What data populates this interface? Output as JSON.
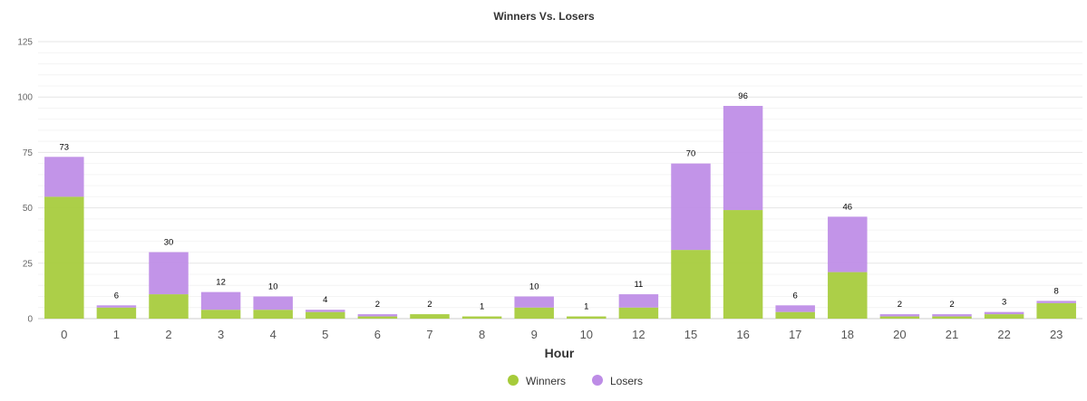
{
  "chart_data": {
    "type": "bar",
    "stacked": true,
    "title": "Winners Vs. Losers",
    "xlabel": "Hour",
    "ylabel": "",
    "ylim": [
      0,
      125
    ],
    "yticks": [
      0,
      25,
      50,
      75,
      100,
      125
    ],
    "categories": [
      "0",
      "1",
      "2",
      "3",
      "4",
      "5",
      "6",
      "7",
      "8",
      "9",
      "10",
      "12",
      "15",
      "16",
      "17",
      "18",
      "20",
      "21",
      "22",
      "23"
    ],
    "series": [
      {
        "name": "Winners",
        "color": "#a6cb3a",
        "values": [
          55,
          5,
          11,
          4,
          4,
          3,
          1,
          2,
          1,
          5,
          1,
          5,
          31,
          49,
          3,
          21,
          1,
          1,
          2,
          7
        ]
      },
      {
        "name": "Losers",
        "color": "#bd8ce6",
        "values": [
          18,
          1,
          19,
          8,
          6,
          1,
          1,
          0,
          0,
          5,
          0,
          6,
          39,
          47,
          3,
          25,
          1,
          1,
          1,
          1
        ]
      }
    ],
    "totals": [
      73,
      6,
      30,
      12,
      10,
      4,
      2,
      2,
      1,
      10,
      1,
      11,
      70,
      96,
      6,
      46,
      2,
      2,
      3,
      8
    ],
    "grid": true,
    "legend_position": "bottom-center"
  }
}
